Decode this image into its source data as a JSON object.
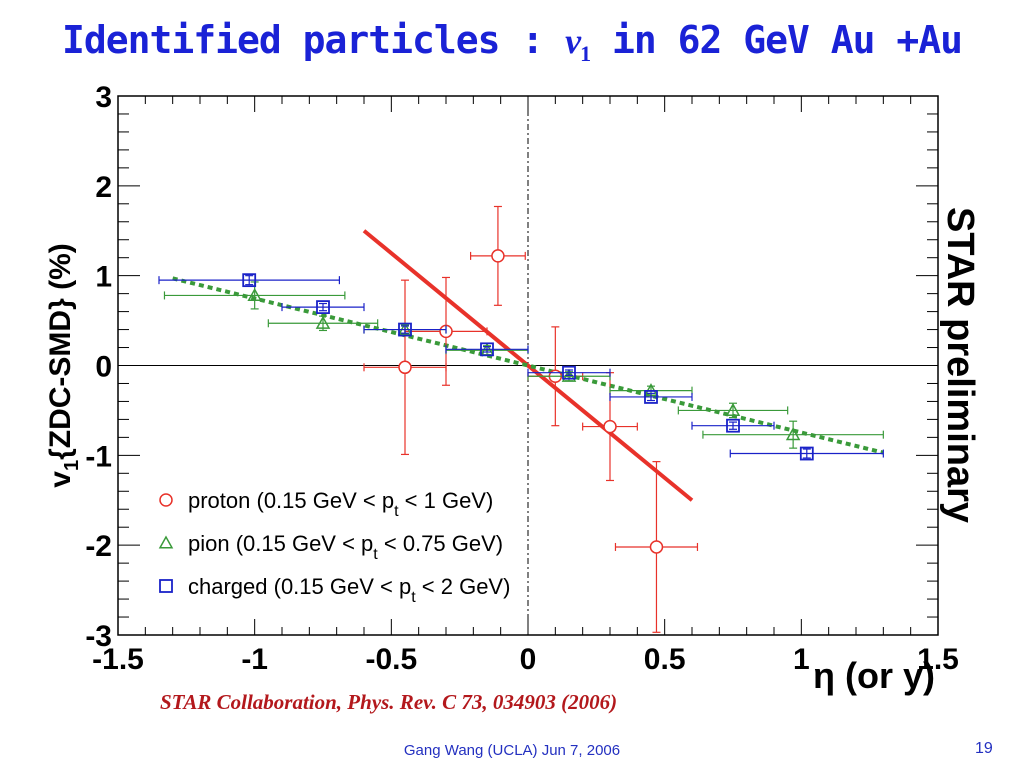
{
  "slide": {
    "title_prefix": "Identified particles : ",
    "title_var": "v",
    "title_sub": "1",
    "title_suffix": " in 62 GeV Au +Au",
    "citation": "STAR Collaboration, Phys. Rev. C 73, 034903 (2006)",
    "footer": "Gang Wang (UCLA) Jun 7, 2006",
    "page_number": "19"
  },
  "chart_data": {
    "type": "scatter",
    "xlabel": "η (or y)",
    "ylabel_main": "v",
    "ylabel_sub": "1",
    "ylabel_rest": "{ZDC-SMD} (%)",
    "watermark": "STAR preliminary",
    "xlim": [
      -1.5,
      1.5
    ],
    "ylim": [
      -3,
      3
    ],
    "xticks": [
      -1.5,
      -1,
      -0.5,
      0,
      0.5,
      1,
      1.5
    ],
    "xtick_labels": [
      "-1.5",
      "-1",
      "-0.5",
      "0",
      "0.5",
      "1",
      "1.5"
    ],
    "yticks": [
      -3,
      -2,
      -1,
      0,
      1,
      2,
      3
    ],
    "ytick_labels": [
      "-3",
      "-2",
      "-1",
      "0",
      "1",
      "2",
      "3"
    ],
    "legend_position": "bottom-left",
    "series": [
      {
        "name": "proton (0.15 GeV < p",
        "name_sub": "t",
        "name_tail": " < 1 GeV)",
        "marker": "circle",
        "color": "#e8322a",
        "points": [
          {
            "x": -0.45,
            "y": -0.02,
            "xerr": 0.15,
            "yerr": 0.97
          },
          {
            "x": -0.3,
            "y": 0.38,
            "xerr": 0.15,
            "yerr": 0.6
          },
          {
            "x": -0.11,
            "y": 1.22,
            "xerr": 0.1,
            "yerr": 0.55
          },
          {
            "x": 0.1,
            "y": -0.12,
            "xerr": 0.1,
            "yerr": 0.55
          },
          {
            "x": 0.3,
            "y": -0.68,
            "xerr": 0.1,
            "yerr": 0.6
          },
          {
            "x": 0.47,
            "y": -2.02,
            "xerr": 0.15,
            "yerr": 0.95
          }
        ]
      },
      {
        "name": "pion (0.15 GeV < p",
        "name_sub": "t",
        "name_tail": " < 0.75 GeV)",
        "marker": "triangle",
        "color": "#3a9a3a",
        "points": [
          {
            "x": -1.0,
            "y": 0.78,
            "xerr": 0.33,
            "yerr": 0.15
          },
          {
            "x": -0.75,
            "y": 0.47,
            "xerr": 0.2,
            "yerr": 0.08
          },
          {
            "x": -0.45,
            "y": 0.4,
            "xerr": 0.15,
            "yerr": 0.05
          },
          {
            "x": -0.15,
            "y": 0.17,
            "xerr": 0.15,
            "yerr": 0.05
          },
          {
            "x": 0.15,
            "y": -0.12,
            "xerr": 0.15,
            "yerr": 0.05
          },
          {
            "x": 0.45,
            "y": -0.28,
            "xerr": 0.15,
            "yerr": 0.05
          },
          {
            "x": 0.75,
            "y": -0.5,
            "xerr": 0.2,
            "yerr": 0.08
          },
          {
            "x": 0.97,
            "y": -0.77,
            "xerr": 0.33,
            "yerr": 0.15
          }
        ]
      },
      {
        "name": "charged (0.15 GeV < p",
        "name_sub": "t",
        "name_tail": " < 2 GeV)",
        "marker": "square",
        "color": "#1a22c8",
        "points": [
          {
            "x": -1.02,
            "y": 0.95,
            "xerr": 0.33,
            "yerr": 0.05
          },
          {
            "x": -0.75,
            "y": 0.65,
            "xerr": 0.15,
            "yerr": 0.04
          },
          {
            "x": -0.45,
            "y": 0.4,
            "xerr": 0.15,
            "yerr": 0.04
          },
          {
            "x": -0.15,
            "y": 0.18,
            "xerr": 0.15,
            "yerr": 0.03
          },
          {
            "x": 0.15,
            "y": -0.08,
            "xerr": 0.15,
            "yerr": 0.03
          },
          {
            "x": 0.45,
            "y": -0.35,
            "xerr": 0.15,
            "yerr": 0.04
          },
          {
            "x": 0.75,
            "y": -0.67,
            "xerr": 0.15,
            "yerr": 0.04
          },
          {
            "x": 1.02,
            "y": -0.98,
            "xerr": 0.28,
            "yerr": 0.05
          }
        ]
      }
    ],
    "fits": [
      {
        "series": "proton",
        "color": "#e8322a",
        "style": "solid",
        "x": [
          -0.6,
          0.6
        ],
        "y": [
          1.5,
          -1.5
        ]
      },
      {
        "series": "pion",
        "color": "#3a9a3a",
        "style": "dashed",
        "x": [
          -1.3,
          1.3
        ],
        "y": [
          0.97,
          -0.97
        ]
      }
    ]
  }
}
